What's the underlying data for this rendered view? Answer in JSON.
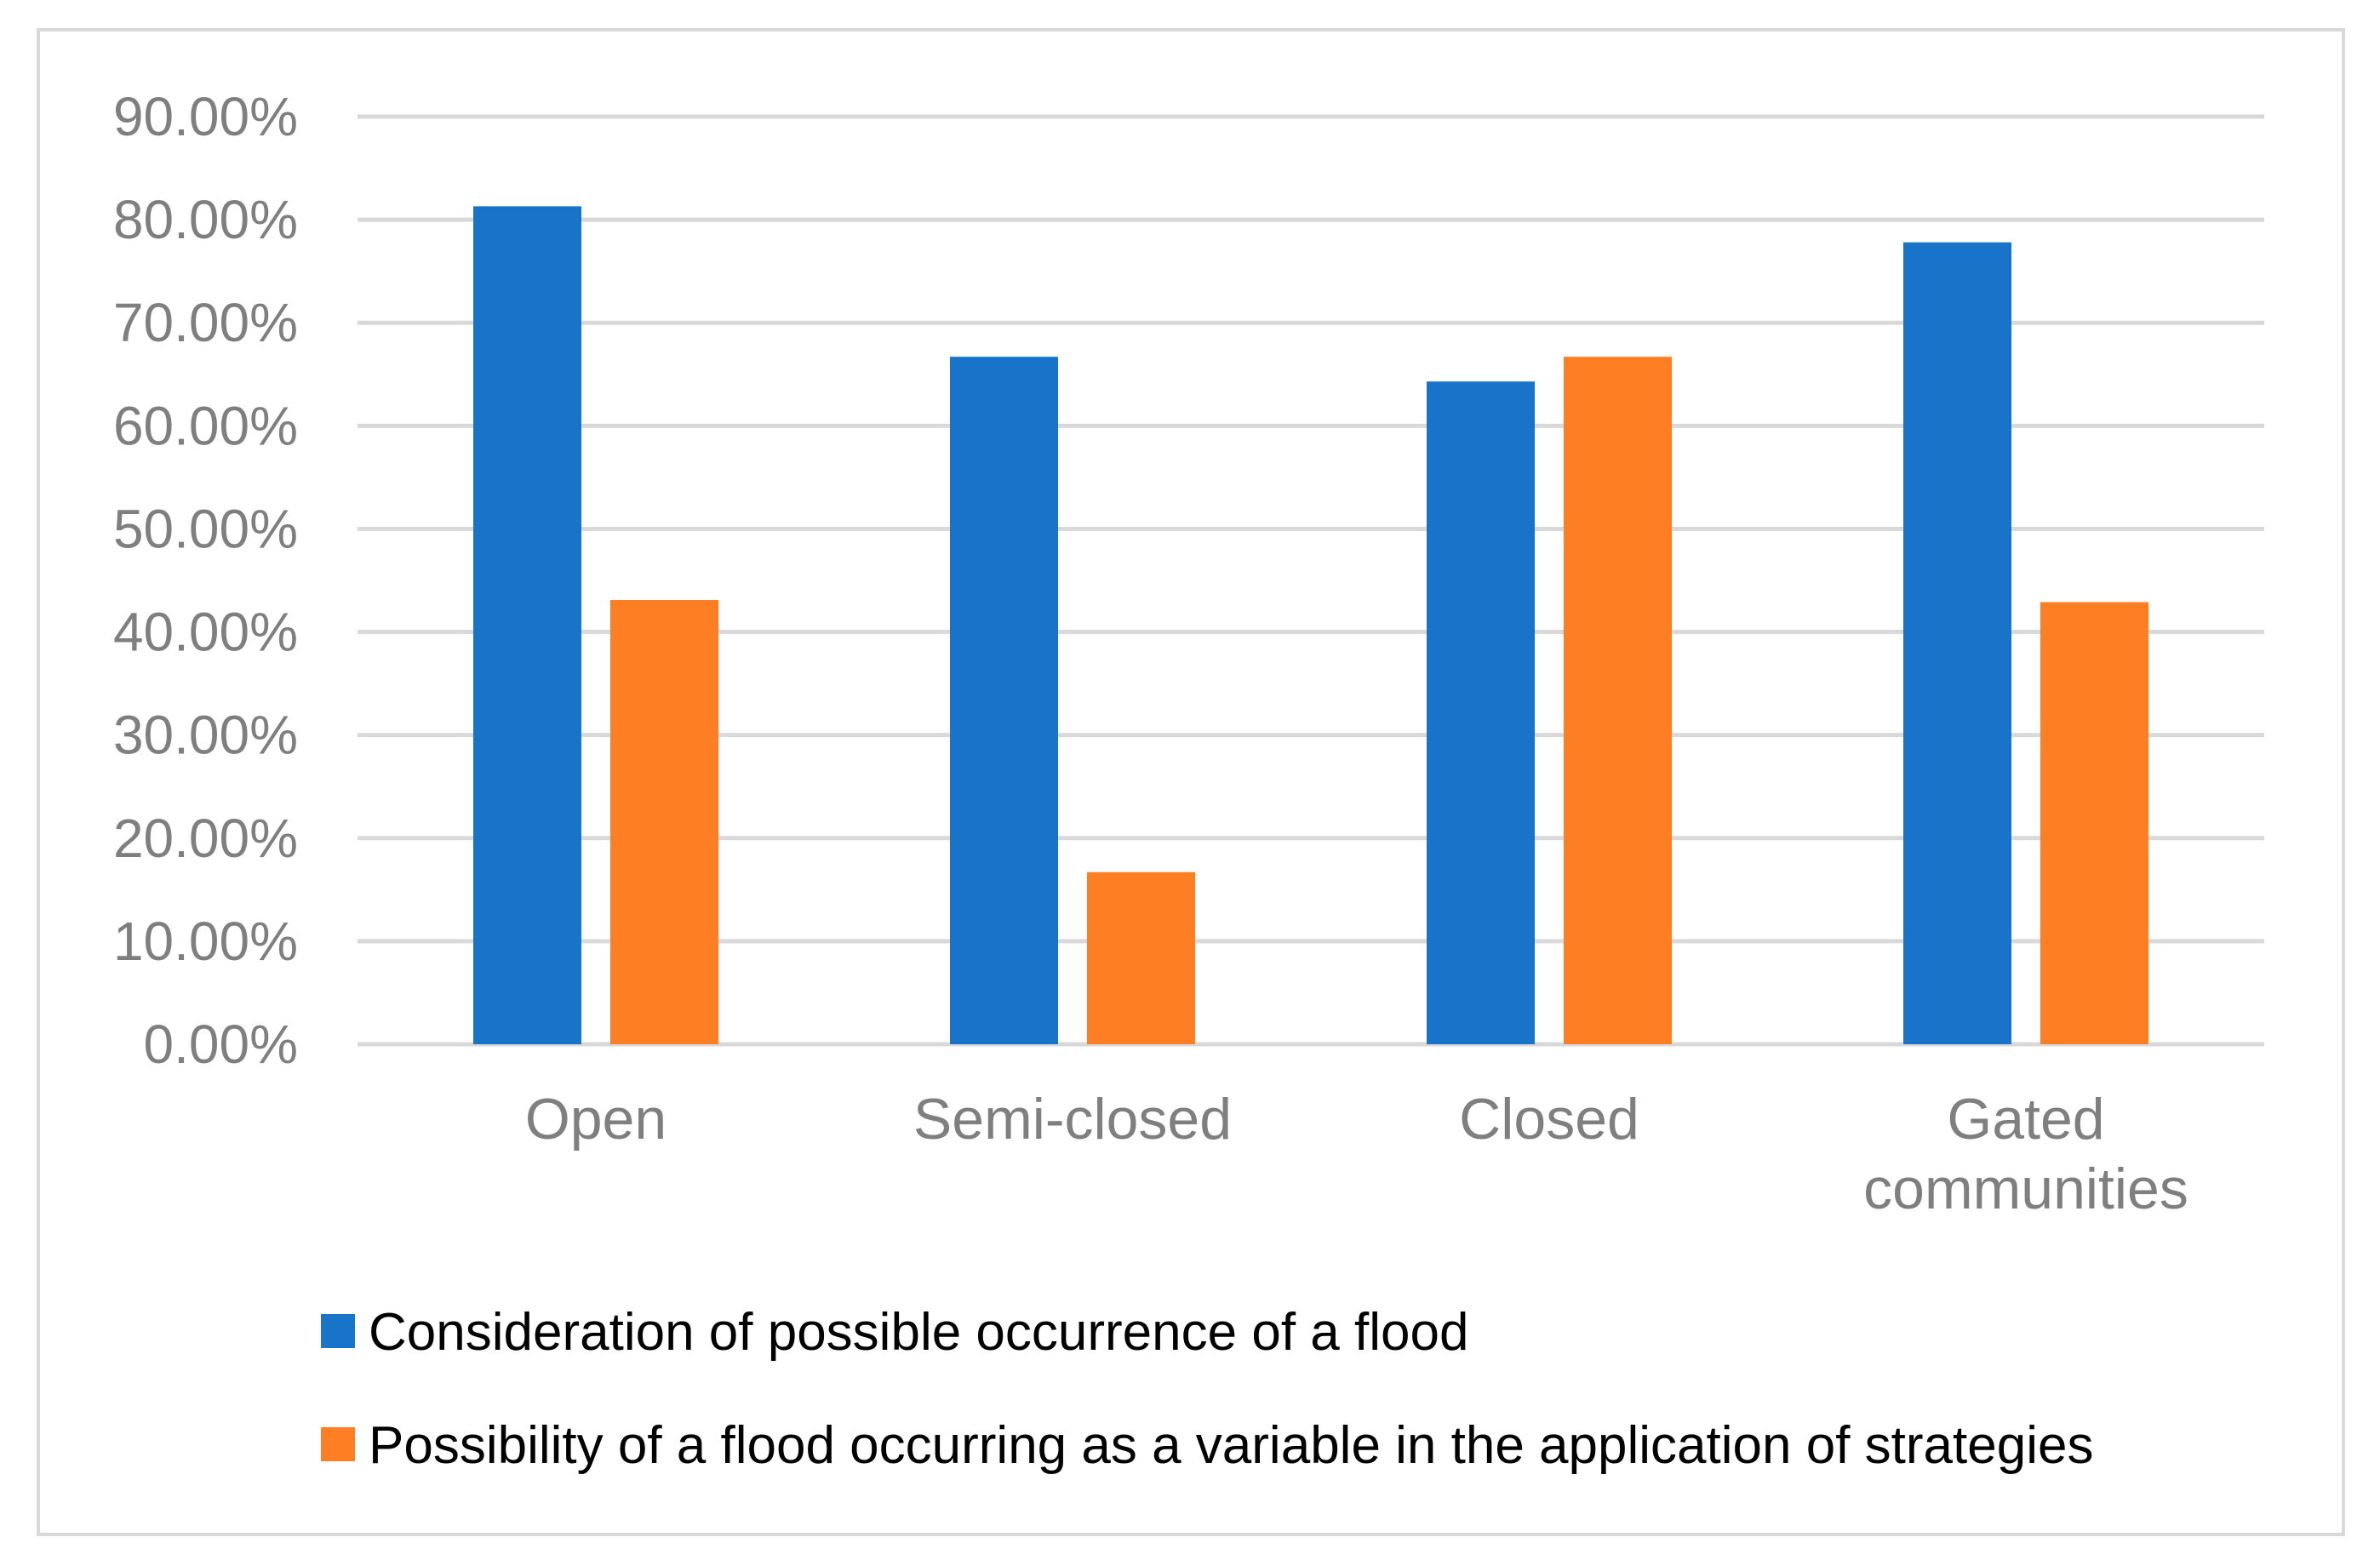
{
  "chart_data": {
    "type": "bar",
    "title": "",
    "xlabel": "",
    "ylabel": "",
    "ylim": [
      0,
      0.9
    ],
    "y_ticks": [
      "0.00%",
      "10.00%",
      "20.00%",
      "30.00%",
      "40.00%",
      "50.00%",
      "60.00%",
      "70.00%",
      "80.00%",
      "90.00%"
    ],
    "grid": true,
    "legend_position": "bottom",
    "categories": [
      [
        "Open"
      ],
      [
        "Semi-closed"
      ],
      [
        "Closed"
      ],
      [
        "Gated",
        "communities"
      ]
    ],
    "series": [
      {
        "name": "Consideration of possible occurrence of a flood",
        "color": "#1874c8",
        "values": [
          0.813,
          0.667,
          0.643,
          0.778
        ]
      },
      {
        "name": "Possibility of a flood occurring as a variable in the application of strategies",
        "color": "#fd7e23",
        "values": [
          0.431,
          0.167,
          0.667,
          0.429
        ]
      }
    ]
  }
}
